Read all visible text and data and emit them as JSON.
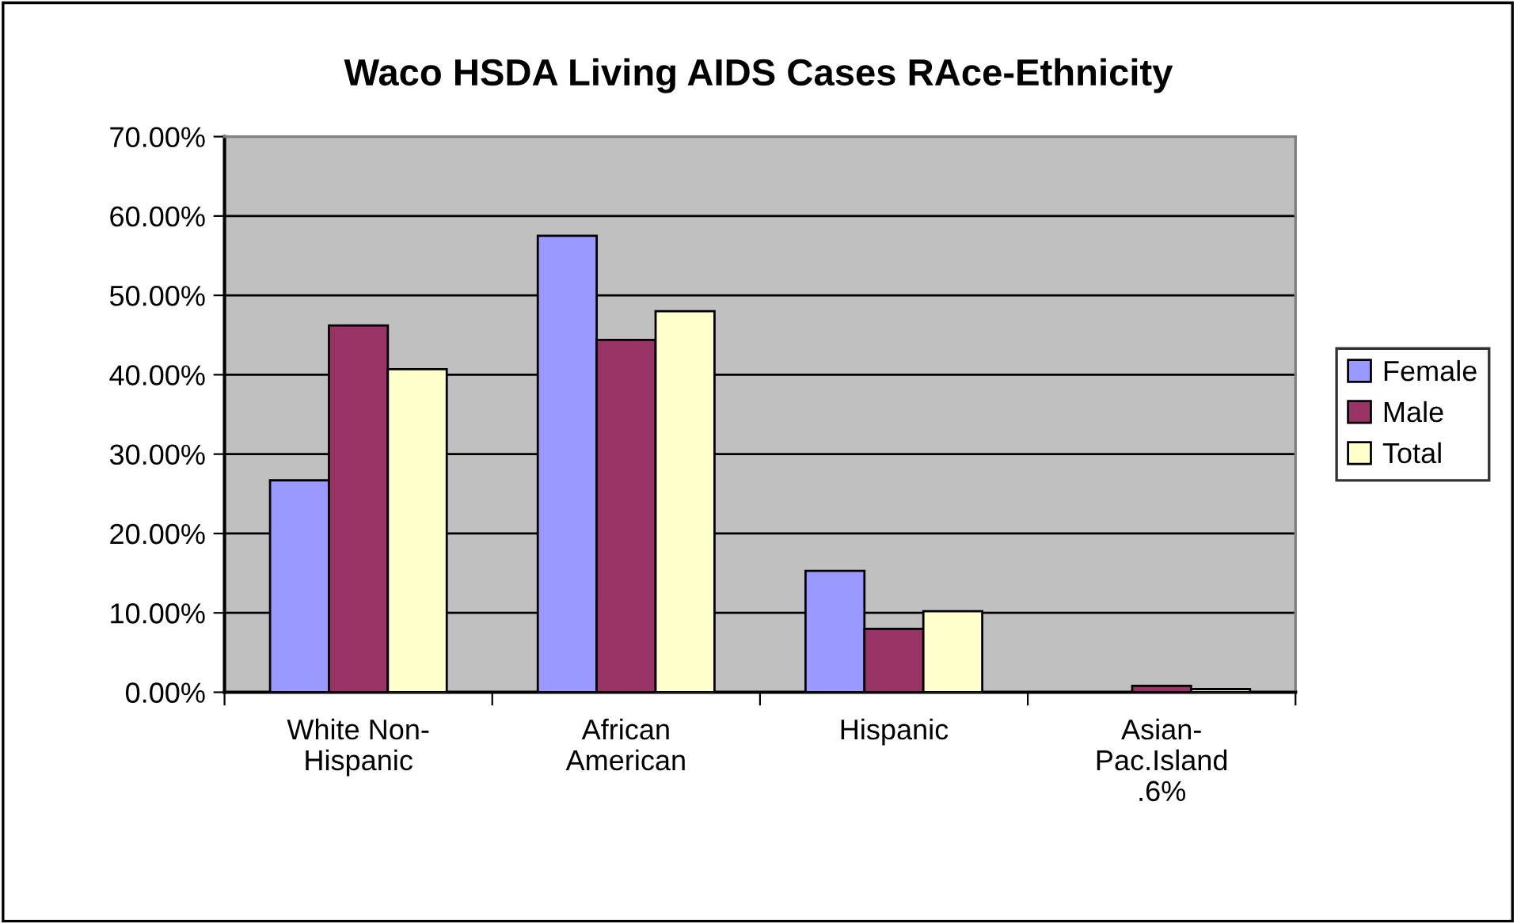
{
  "chart_data": {
    "type": "bar",
    "title": "Waco HSDA Living AIDS Cases RAce-Ethnicity",
    "categories": [
      "White Non-\nHispanic",
      "African\nAmerican",
      "Hispanic",
      "Asian-\nPac.Island\n.6%"
    ],
    "series": [
      {
        "name": "Female",
        "color": "#9999ff",
        "values": [
          26.7,
          57.5,
          15.3,
          null
        ]
      },
      {
        "name": "Male",
        "color": "#993366",
        "values": [
          46.2,
          44.4,
          8.0,
          0.8
        ]
      },
      {
        "name": "Total",
        "color": "#ffffcc",
        "values": [
          40.7,
          48.0,
          10.2,
          0.4
        ]
      }
    ],
    "ylim": [
      0,
      70
    ],
    "yticks": [
      {
        "value": 0,
        "label": "0.00%"
      },
      {
        "value": 10,
        "label": "10.00%"
      },
      {
        "value": 20,
        "label": "20.00%"
      },
      {
        "value": 30,
        "label": "30.00%"
      },
      {
        "value": 40,
        "label": "40.00%"
      },
      {
        "value": 50,
        "label": "50.00%"
      },
      {
        "value": 60,
        "label": "60.00%"
      },
      {
        "value": 70,
        "label": "70.00%"
      }
    ],
    "grid": "y",
    "legend": "right"
  }
}
